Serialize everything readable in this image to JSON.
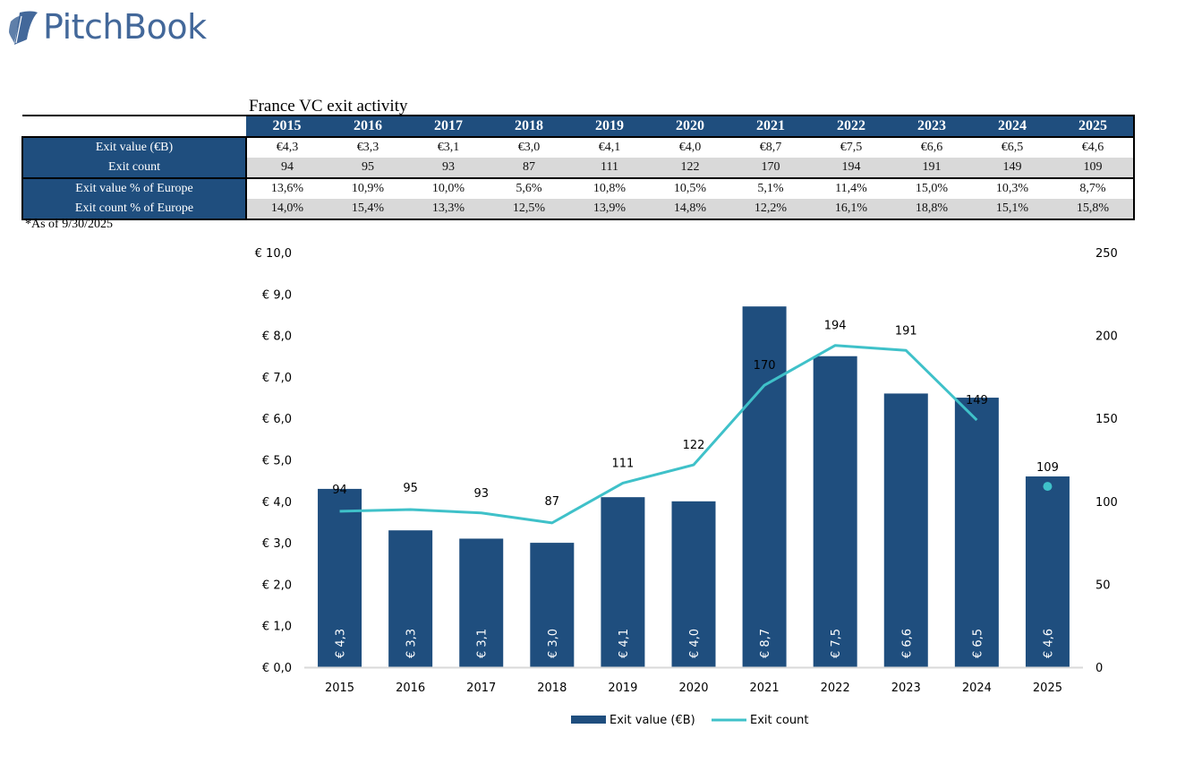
{
  "brand": {
    "name": "PitchBook",
    "color": "#43689a"
  },
  "table": {
    "title": "France VC exit activity",
    "years": [
      "2015",
      "2016",
      "2017",
      "2018",
      "2019",
      "2020",
      "2021",
      "2022",
      "2023",
      "2024",
      "2025"
    ],
    "rows": [
      {
        "label": "Exit value (€B)",
        "values": [
          "€4,3",
          "€3,3",
          "€3,1",
          "€3,0",
          "€4,1",
          "€4,0",
          "€8,7",
          "€7,5",
          "€6,6",
          "€6,5",
          "€4,6"
        ]
      },
      {
        "label": "Exit count",
        "values": [
          "94",
          "95",
          "93",
          "87",
          "111",
          "122",
          "170",
          "194",
          "191",
          "149",
          "109"
        ]
      },
      {
        "label": "Exit value % of Europe",
        "values": [
          "13,6%",
          "10,9%",
          "10,0%",
          "5,6%",
          "10,8%",
          "10,5%",
          "5,1%",
          "11,4%",
          "15,0%",
          "10,3%",
          "8,7%"
        ]
      },
      {
        "label": "Exit count % of Europe",
        "values": [
          "14,0%",
          "15,4%",
          "13,3%",
          "12,5%",
          "13,9%",
          "14,8%",
          "12,2%",
          "16,1%",
          "18,8%",
          "15,1%",
          "15,8%"
        ]
      }
    ],
    "footnote": "*As of 9/30/2025"
  },
  "colors": {
    "bar": "#1f4e7e",
    "line": "#3fc1c9",
    "header": "#1f4e7e",
    "gray_row": "#d9d9d9",
    "axis_line": "#d9d9d9"
  },
  "chart_data": {
    "type": "bar+line",
    "categories": [
      "2015",
      "2016",
      "2017",
      "2018",
      "2019",
      "2020",
      "2021",
      "2022",
      "2023",
      "2024",
      "2025"
    ],
    "series": [
      {
        "name": "Exit value (€B)",
        "type": "bar",
        "axis": "left",
        "values": [
          4.3,
          3.3,
          3.1,
          3.0,
          4.1,
          4.0,
          8.7,
          7.5,
          6.6,
          6.5,
          4.6
        ],
        "labels": [
          "€ 4,3",
          "€ 3,3",
          "€ 3,1",
          "€ 3,0",
          "€ 4,1",
          "€ 4,0",
          "€ 8,7",
          "€ 7,5",
          "€ 6,6",
          "€ 6,5",
          "€ 4,6"
        ]
      },
      {
        "name": "Exit count",
        "type": "line",
        "axis": "right",
        "values": [
          94,
          95,
          93,
          87,
          111,
          122,
          170,
          194,
          191,
          149,
          109
        ],
        "labels": [
          "94",
          "95",
          "93",
          "87",
          "111",
          "122",
          "170",
          "194",
          "191",
          "149",
          "109"
        ],
        "note": "2025 shown as standalone point (not connected)"
      }
    ],
    "y_left": {
      "min": 0,
      "max": 10,
      "ticks": [
        "€ 0,0",
        "€ 1,0",
        "€ 2,0",
        "€ 3,0",
        "€ 4,0",
        "€ 5,0",
        "€ 6,0",
        "€ 7,0",
        "€ 8,0",
        "€ 9,0",
        "€ 10,0"
      ]
    },
    "y_right": {
      "min": 0,
      "max": 250,
      "ticks": [
        "0",
        "50",
        "100",
        "150",
        "200",
        "250"
      ]
    },
    "title": "",
    "xlabel": "",
    "ylabel": "",
    "grid": false,
    "legend": {
      "position": "bottom",
      "entries": [
        "Exit value (€B)",
        "Exit count"
      ]
    }
  }
}
